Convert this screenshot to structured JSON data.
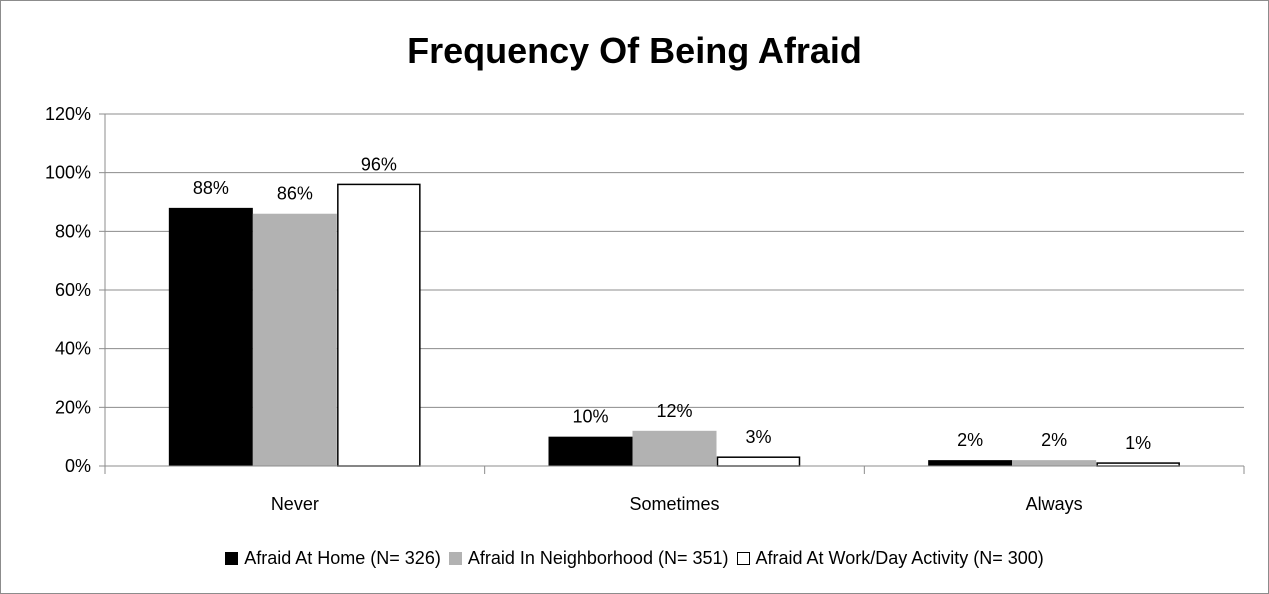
{
  "chart_data": {
    "type": "bar",
    "title": "Frequency Of Being Afraid",
    "xlabel": "",
    "ylabel": "",
    "categories": [
      "Never",
      "Sometimes",
      "Always"
    ],
    "series": [
      {
        "name": "Afraid At Home (N= 326)",
        "values": [
          88,
          10,
          2
        ],
        "labels": [
          "88%",
          "10%",
          "2%"
        ],
        "color": "#000000"
      },
      {
        "name": "Afraid In Neighborhood (N= 351)",
        "values": [
          86,
          12,
          2
        ],
        "labels": [
          "86%",
          "12%",
          "2%"
        ],
        "color": "#b2b2b2"
      },
      {
        "name": "Afraid At Work/Day Activity (N= 300)",
        "values": [
          96,
          3,
          1
        ],
        "labels": [
          "96%",
          "3%",
          "1%"
        ],
        "color": "#ffffff"
      }
    ],
    "ylim": [
      0,
      120
    ],
    "yticks": [
      0,
      20,
      40,
      60,
      80,
      100,
      120
    ],
    "ytick_labels": [
      "0%",
      "20%",
      "40%",
      "60%",
      "80%",
      "100%",
      "120%"
    ],
    "grid": true,
    "legend_position": "bottom"
  }
}
